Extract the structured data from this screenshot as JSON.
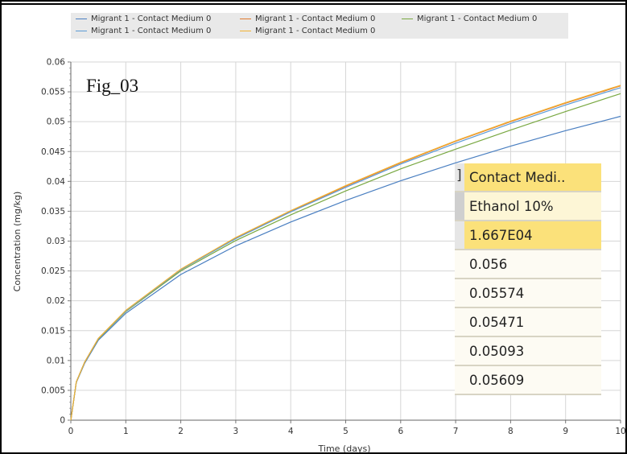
{
  "chart_data": {
    "type": "line",
    "title": "",
    "annotation": "Fig_03",
    "xlabel": "Time (days)",
    "ylabel": "Concentration (mg/kg)",
    "xlim": [
      0,
      10
    ],
    "ylim": [
      0,
      0.06
    ],
    "x_ticks": [
      "0",
      "1",
      "2",
      "3",
      "4",
      "5",
      "6",
      "7",
      "8",
      "9",
      "10"
    ],
    "y_ticks": [
      "0",
      "0.005",
      "0.01",
      "0.015",
      "0.02",
      "0.025",
      "0.03",
      "0.035",
      "0.04",
      "0.045",
      "0.05",
      "0.055",
      "0.06"
    ],
    "grid": true,
    "legend_position": "top",
    "x": [
      0,
      0.1,
      0.25,
      0.5,
      1,
      2,
      3,
      4,
      5,
      6,
      7,
      8,
      9,
      10
    ],
    "series": [
      {
        "name": "Migrant 1 - Contact Medium 0",
        "color": "#4a7fc1",
        "values": [
          0,
          0.0063,
          0.0095,
          0.0134,
          0.0179,
          0.0244,
          0.0292,
          0.0332,
          0.0368,
          0.0401,
          0.0431,
          0.0459,
          0.0485,
          0.0509
        ]
      },
      {
        "name": "Migrant 1 - Contact Medium 0",
        "color": "#e07b2e",
        "values": [
          0,
          0.0064,
          0.0097,
          0.0137,
          0.0183,
          0.0252,
          0.0305,
          0.035,
          0.0392,
          0.0431,
          0.0467,
          0.05,
          0.0531,
          0.056
        ]
      },
      {
        "name": "Migrant 1 - Contact Medium 0",
        "color": "#79a842",
        "values": [
          0,
          0.0064,
          0.0097,
          0.0136,
          0.0182,
          0.025,
          0.0301,
          0.0344,
          0.0384,
          0.0421,
          0.0454,
          0.0486,
          0.0517,
          0.0547
        ]
      },
      {
        "name": "Migrant 1 - Contact Medium 0",
        "color": "#5b9bd5",
        "values": [
          0,
          0.0064,
          0.0097,
          0.0137,
          0.0183,
          0.0252,
          0.0304,
          0.0349,
          0.039,
          0.0429,
          0.0464,
          0.0497,
          0.0528,
          0.0557
        ]
      },
      {
        "name": "Migrant 1 - Contact Medium 0",
        "color": "#f2b233",
        "values": [
          0,
          0.0064,
          0.0097,
          0.0137,
          0.0184,
          0.0253,
          0.0306,
          0.0351,
          0.0393,
          0.0432,
          0.0468,
          0.0501,
          0.0532,
          0.0561
        ]
      }
    ]
  },
  "table": {
    "bracket": "]",
    "header": "Contact Medi..",
    "medium": "Ethanol 10%",
    "time": "1.667E04",
    "values": [
      "0.056",
      "0.05574",
      "0.05471",
      "0.05093",
      "0.05609"
    ]
  }
}
